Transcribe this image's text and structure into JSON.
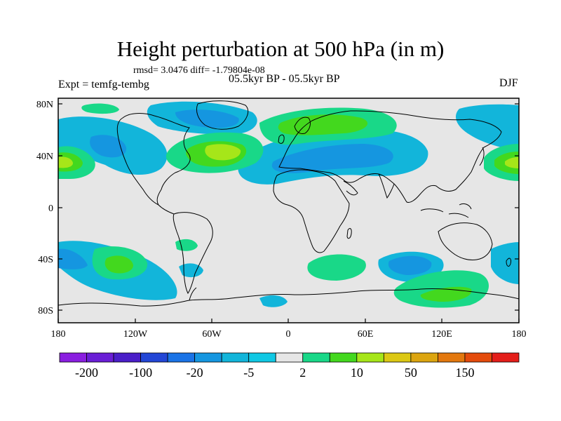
{
  "title": "Height perturbation at 500 hPa (in m)",
  "stats": "rmsd= 3.0476 diff= -1.79804e-08",
  "experiment": "Expt = temfg-tembg",
  "period": "05.5kyr BP - 05.5kyr BP",
  "season": "DJF",
  "lat_ticks": [
    "80N",
    "40N",
    "0",
    "40S",
    "80S"
  ],
  "lon_ticks": [
    "180",
    "120W",
    "60W",
    "0",
    "60E",
    "120E",
    "180"
  ],
  "colorbar": {
    "colors": [
      "#8a1ee0",
      "#6a1ed6",
      "#4a1ec8",
      "#2346d6",
      "#1a73e6",
      "#1596e0",
      "#12b5da",
      "#10c8e4",
      "#e6e6e6",
      "#19d888",
      "#43d81e",
      "#a6e619",
      "#dcc814",
      "#dca510",
      "#e3780e",
      "#e44b0c",
      "#e41e1a"
    ],
    "labels": [
      "-200",
      "-100",
      "-20",
      "-5",
      "2",
      "10",
      "50",
      "150"
    ],
    "neutral": "#e6e6e6",
    "background": "#ffffff"
  }
}
